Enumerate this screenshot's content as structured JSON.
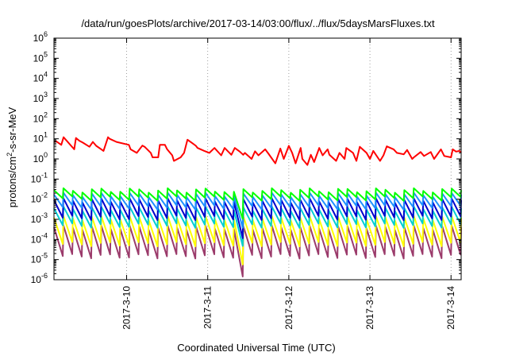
{
  "chart_data": {
    "type": "line",
    "title": "/data/run/goesPlots/archive/2017-03-14/03:00/flux/../flux/5daysMarsFluxes.txt",
    "xlabel": "Coordinated Universal Time (UTC)",
    "ylabel_parts": [
      "protons/cm",
      "2",
      "-s-sr-MeV"
    ],
    "xlim": [
      "2017-03-09 02:30",
      "2017-03-14 03:00"
    ],
    "x_ticks": [
      "2017-3-10",
      "2017-3-11",
      "2017-3-12",
      "2017-3-13",
      "2017-3-14"
    ],
    "y_scale": "log",
    "ylim": [
      1e-06,
      1000000.0
    ],
    "y_ticks": [
      {
        "base": "10",
        "exp": "-6"
      },
      {
        "base": "10",
        "exp": "-5"
      },
      {
        "base": "10",
        "exp": "-4"
      },
      {
        "base": "10",
        "exp": "-3"
      },
      {
        "base": "10",
        "exp": "-2"
      },
      {
        "base": "10",
        "exp": "-1"
      },
      {
        "base": "10",
        "exp": "0"
      },
      {
        "base": "10",
        "exp": "1"
      },
      {
        "base": "10",
        "exp": "2"
      },
      {
        "base": "10",
        "exp": "3"
      },
      {
        "base": "10",
        "exp": "4"
      },
      {
        "base": "10",
        "exp": "5"
      },
      {
        "base": "10",
        "exp": "6"
      }
    ],
    "grid": {
      "x": "dashed vertical at day ticks",
      "y": false
    },
    "series": [
      {
        "color": "#ff0000",
        "x": [
          "2017-03-09 02:30",
          "2017-03-09 03:10",
          "2017-03-09 04:40",
          "2017-03-09 05:20",
          "2017-03-09 08:30",
          "2017-03-09 09:00",
          "2017-03-09 10:00",
          "2017-03-09 11:00",
          "2017-03-09 13:00",
          "2017-03-09 14:00",
          "2017-03-09 15:00",
          "2017-03-09 16:30",
          "2017-03-09 17:10",
          "2017-03-09 18:30",
          "2017-03-09 19:00",
          "2017-03-09 21:00",
          "2017-03-10 00:40",
          "2017-03-10 01:10",
          "2017-03-10 03:00",
          "2017-03-10 04:40",
          "2017-03-10 05:20",
          "2017-03-10 07:10",
          "2017-03-10 07:40",
          "2017-03-10 09:20",
          "2017-03-10 09:50",
          "2017-03-10 11:20",
          "2017-03-10 12:00",
          "2017-03-10 13:30",
          "2017-03-10 14:00",
          "2017-03-10 16:00",
          "2017-03-10 17:00",
          "2017-03-10 18:00",
          "2017-03-10 19:30",
          "2017-03-10 20:30",
          "2017-03-10 21:00",
          "2017-03-10 23:00",
          "2017-03-11 00:30",
          "2017-03-11 02:00",
          "2017-03-11 04:00",
          "2017-03-11 05:00",
          "2017-03-11 07:00",
          "2017-03-11 08:00",
          "2017-03-11 09:30",
          "2017-03-11 10:30",
          "2017-03-11 11:00",
          "2017-03-11 13:00",
          "2017-03-11 14:00",
          "2017-03-11 15:00",
          "2017-03-11 17:00",
          "2017-03-11 18:00",
          "2017-03-11 19:30",
          "2017-03-11 20:00",
          "2017-03-11 21:30",
          "2017-03-11 22:30",
          "2017-03-12 00:00",
          "2017-03-12 01:00",
          "2017-03-12 02:00",
          "2017-03-12 03:30",
          "2017-03-12 04:00",
          "2017-03-12 05:30",
          "2017-03-12 06:30",
          "2017-03-12 07:30",
          "2017-03-12 09:00",
          "2017-03-12 10:00",
          "2017-03-12 11:30",
          "2017-03-12 12:00",
          "2017-03-12 14:00",
          "2017-03-12 15:00",
          "2017-03-12 16:30",
          "2017-03-12 17:00",
          "2017-03-12 19:00",
          "2017-03-12 20:00",
          "2017-03-12 21:00",
          "2017-03-12 23:00",
          "2017-03-13 00:00",
          "2017-03-13 01:00",
          "2017-03-13 03:00",
          "2017-03-13 04:00",
          "2017-03-13 05:00",
          "2017-03-13 07:00",
          "2017-03-13 08:00",
          "2017-03-13 10:00",
          "2017-03-13 11:00",
          "2017-03-13 12:30",
          "2017-03-13 13:00",
          "2017-03-13 15:00",
          "2017-03-13 16:00",
          "2017-03-13 18:00",
          "2017-03-13 19:00",
          "2017-03-13 21:00",
          "2017-03-13 22:00",
          "2017-03-14 00:00",
          "2017-03-14 00:30",
          "2017-03-14 01:30",
          "2017-03-14 02:30",
          "2017-03-14 03:00"
        ],
        "values": [
          7,
          7.5,
          5,
          12,
          3,
          11,
          8,
          6.5,
          4,
          7,
          4.5,
          3,
          2.5,
          12,
          10,
          7,
          5,
          3,
          2,
          4.6,
          4,
          2,
          1.2,
          1.2,
          5,
          5,
          3,
          1.5,
          0.8,
          1.2,
          2,
          9,
          6,
          4.5,
          3.5,
          2.5,
          2,
          3.5,
          1.5,
          3.5,
          1.6,
          3.5,
          2.3,
          1.6,
          2,
          1,
          2.4,
          1.5,
          3,
          1.8,
          0.8,
          0.6,
          3.3,
          1,
          4.5,
          2,
          0.6,
          3.5,
          1,
          0.5,
          1.6,
          0.7,
          3.5,
          1.5,
          3,
          1.6,
          0.8,
          2,
          1,
          3.5,
          2,
          0.8,
          4,
          2,
          1,
          2.5,
          0.8,
          1.5,
          4.2,
          3,
          2,
          1.7,
          2.8,
          1,
          1.2,
          2.2,
          1.4,
          2.2,
          1,
          3,
          1.4,
          1.2,
          3,
          2.3,
          2.5,
          2
        ]
      },
      {
        "color": "#00ff00",
        "sawtooth": {
          "peaks": 43,
          "peak": 0.028,
          "trough": 0.011
        }
      },
      {
        "color": "#1e90ff",
        "sawtooth": {
          "peaks": 43,
          "peak": 0.017,
          "trough": 0.004
        }
      },
      {
        "color": "#0000cd",
        "sawtooth": {
          "peaks": 43,
          "peak": 0.009,
          "trough": 0.0012
        }
      },
      {
        "color": "#00ced1",
        "sawtooth": {
          "peaks": 43,
          "peak": 0.0035,
          "trough": 0.0005
        }
      },
      {
        "color": "#ffff00",
        "sawtooth": {
          "peaks": 43,
          "peak": 0.0012,
          "trough": 6e-05
        }
      },
      {
        "color": "#9b3b6b",
        "sawtooth": {
          "peaks": 43,
          "peak": 0.0004,
          "trough": 1.5e-05
        }
      }
    ]
  }
}
